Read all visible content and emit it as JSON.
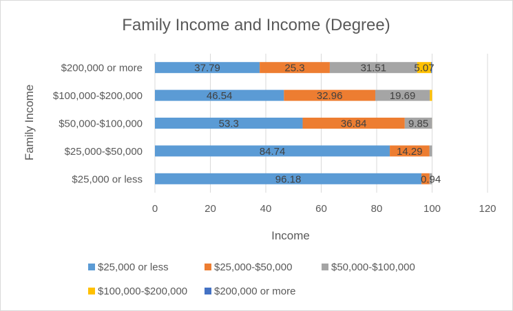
{
  "chart_data": {
    "type": "bar",
    "orientation": "horizontal",
    "stacked": true,
    "title": "Family Income and Income (Degree)",
    "xlabel": "Income",
    "ylabel": "Family Income",
    "xlim": [
      0,
      120
    ],
    "x_ticks": [
      "0",
      "20",
      "40",
      "60",
      "80",
      "100",
      "120"
    ],
    "grid": true,
    "legend_position": "bottom",
    "categories": [
      "$200,000 or more",
      "$100,000-$200,000",
      "$50,000-$100,000",
      "$25,000-$50,000",
      "$25,000 or less"
    ],
    "series": [
      {
        "name": "$25,000 or less",
        "color": "#5B9BD5",
        "values": [
          37.79,
          46.54,
          53.3,
          84.74,
          96.18
        ],
        "labels": [
          "37.79",
          "46.54",
          "53.3",
          "84.74",
          "96.18"
        ]
      },
      {
        "name": "$25,000-$50,000",
        "color": "#ED7D31",
        "values": [
          25.3,
          32.96,
          36.84,
          14.29,
          2.88
        ],
        "labels": [
          "25.3",
          "32.96",
          "36.84",
          "14.29",
          ""
        ]
      },
      {
        "name": "$50,000-$100,000",
        "color": "#A5A5A5",
        "values": [
          31.51,
          19.69,
          9.85,
          0.97,
          0.94
        ],
        "labels": [
          "31.51",
          "19.69",
          "9.85",
          "",
          "0.94"
        ]
      },
      {
        "name": "$100,000-$200,000",
        "color": "#FFC000",
        "values": [
          5.07,
          0.81,
          0.01,
          0,
          0
        ],
        "labels": [
          "5.07",
          "",
          "",
          "",
          ""
        ]
      },
      {
        "name": "$200,000 or more",
        "color": "#4472C4",
        "values": [
          0.33,
          0,
          0,
          0,
          0
        ],
        "labels": [
          "",
          "",
          "",
          "",
          ""
        ]
      }
    ]
  }
}
